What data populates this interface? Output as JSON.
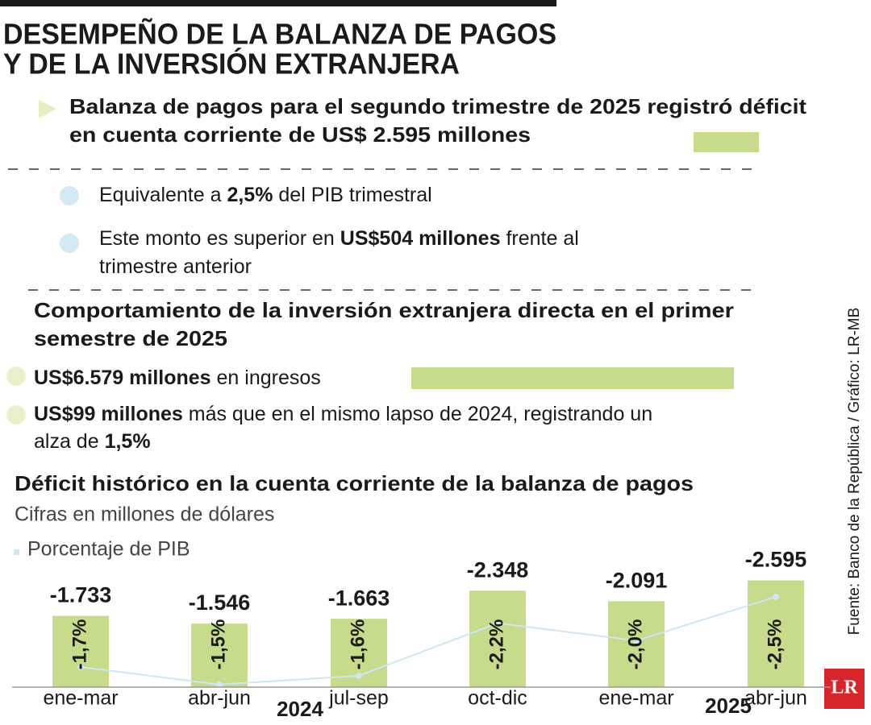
{
  "header": {
    "title_lines": [
      "DESEMPEÑO DE LA BALANZA DE PAGOS",
      "Y DE LA INVERSIÓN EXTRANJERA"
    ]
  },
  "balance": {
    "headline_lines": [
      "Balanza de pagos para el segundo trimestre de 2025 registró déficit",
      "en cuenta corriente de US$ 2.595 millones"
    ],
    "points": [
      {
        "lines": [
          [
            {
              "text": "Equivalente a "
            },
            {
              "text": "2,5%",
              "bold": true
            },
            {
              "text": " del PIB trimestral"
            }
          ]
        ]
      },
      {
        "lines": [
          [
            {
              "text": "Este monto es superior en "
            },
            {
              "text": "US$504 millones",
              "bold": true
            },
            {
              "text": " frente al"
            }
          ],
          [
            {
              "text": "trimestre anterior"
            }
          ]
        ]
      }
    ]
  },
  "investment": {
    "headline_lines": [
      "Comportamiento de la inversión extranjera directa en el primer",
      "semestre de 2025"
    ],
    "points": [
      {
        "lines": [
          [
            {
              "text": "US$6.579 millones",
              "bold": true
            },
            {
              "text": " en ingresos"
            }
          ]
        ]
      },
      {
        "lines": [
          [
            {
              "text": "US$99 millones",
              "bold": true
            },
            {
              "text": " más que en el mismo lapso de 2024, registrando un"
            }
          ],
          [
            {
              "text": "alza de "
            },
            {
              "text": "1,5%",
              "bold": true
            }
          ]
        ]
      }
    ]
  },
  "chart_data": {
    "type": "bar",
    "title": "Déficit histórico en la cuenta corriente de la balanza de pagos",
    "subtitle": "Cifras en millones de dólares",
    "categories": [
      "ene-mar",
      "abr-jun",
      "jul-sep",
      "oct-dic",
      "ene-mar",
      "abr-jun"
    ],
    "year_labels": [
      "2024",
      "2025"
    ],
    "ylim": [
      0,
      -2900
    ],
    "y2lim": [
      -1.47,
      -2.83
    ],
    "series": [
      {
        "type": "bar",
        "color": "#c6dc8c",
        "values": [
          -1733,
          -1546,
          -1663,
          -2348,
          -2091,
          -2595
        ],
        "value_labels": [
          "-1.733",
          "-1.546",
          "-1.663",
          "-2.348",
          "-2.091",
          "-2.595"
        ]
      },
      {
        "type": "line",
        "name": "Porcentaje de PIB",
        "axis": "y2",
        "color": "#cfe7f1",
        "values": [
          -1.7,
          -1.5,
          -1.6,
          -2.2,
          -2.0,
          -2.5
        ],
        "value_labels": [
          "-1,7%",
          "-1,5%",
          "-1,6%",
          "-2,2%",
          "-2,0%",
          "-2,5%"
        ]
      }
    ]
  },
  "source": "Fuente: Banco de la República / Gráfico: LR-MB",
  "logo": "LR"
}
